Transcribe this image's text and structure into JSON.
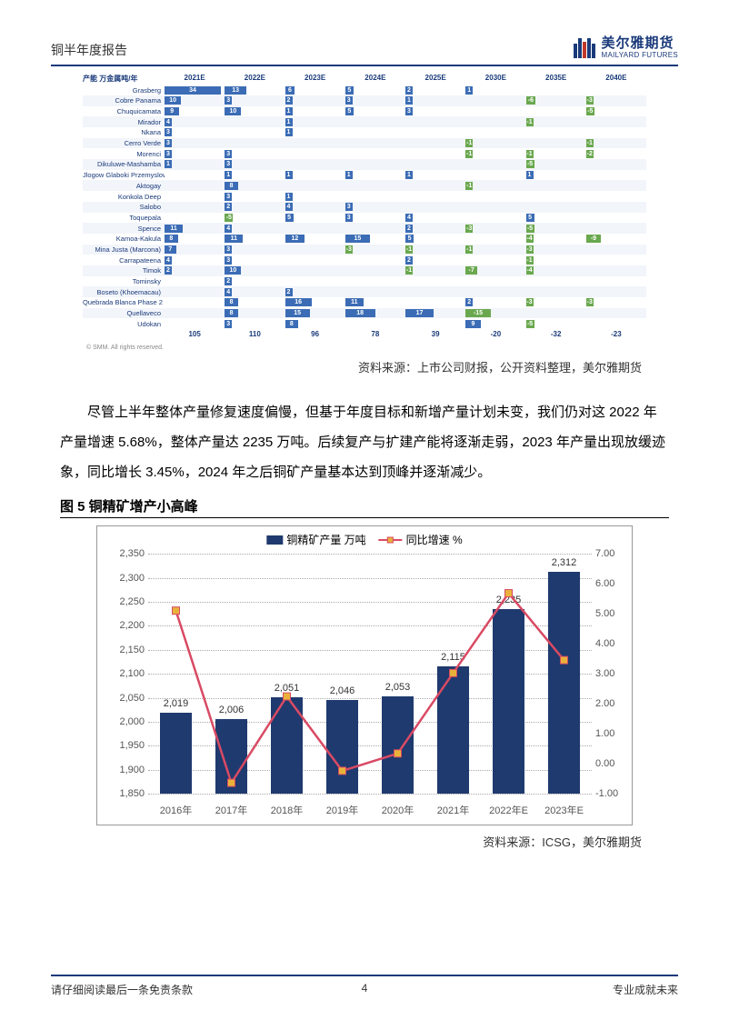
{
  "header": {
    "report_title": "铜半年度报告",
    "logo_cn": "美尔雅期货",
    "logo_en": "MAILYARD FUTURES"
  },
  "mine_chart": {
    "axis_label": "产能 万金属吨/年",
    "years": [
      "2021E",
      "2022E",
      "2023E",
      "2024E",
      "2025E",
      "2030E",
      "2035E",
      "2040E"
    ],
    "pos_color": "#3b6cb5",
    "neg_color": "#6aa84f",
    "row_alt_bg": "#f2f5fa",
    "mines": [
      {
        "name": "Grasberg",
        "cells": [
          {
            "v": 34,
            "p": 1
          },
          {
            "v": 13,
            "p": 1
          },
          {
            "v": 6,
            "p": 1
          },
          {
            "v": 5,
            "p": 1
          },
          {
            "v": 2,
            "p": 1
          },
          {
            "v": 1,
            "p": 1
          },
          null,
          null
        ]
      },
      {
        "name": "Cobre Panama",
        "cells": [
          {
            "v": 10,
            "p": 1
          },
          {
            "v": 3,
            "p": 1
          },
          {
            "v": 2,
            "p": 1
          },
          {
            "v": 3,
            "p": 1
          },
          {
            "v": 1,
            "p": 1
          },
          null,
          {
            "v": -6,
            "p": -1
          },
          {
            "v": -3,
            "p": -1
          }
        ]
      },
      {
        "name": "Chuquicamata",
        "cells": [
          {
            "v": 9,
            "p": 1
          },
          {
            "v": 10,
            "p": 1
          },
          {
            "v": 1,
            "p": 1
          },
          {
            "v": 5,
            "p": 1
          },
          {
            "v": 3,
            "p": 1
          },
          null,
          null,
          {
            "v": -5,
            "p": -1
          }
        ]
      },
      {
        "name": "Mirador",
        "cells": [
          {
            "v": 4,
            "p": 1
          },
          null,
          {
            "v": 1,
            "p": 1
          },
          null,
          null,
          null,
          {
            "v": -1,
            "p": -1
          },
          null
        ]
      },
      {
        "name": "Nkana",
        "cells": [
          {
            "v": 3,
            "p": 1
          },
          null,
          {
            "v": 1,
            "p": 1
          },
          null,
          null,
          null,
          null,
          null
        ]
      },
      {
        "name": "Cerro Verde",
        "cells": [
          {
            "v": 3,
            "p": 1
          },
          null,
          null,
          null,
          null,
          {
            "v": -1,
            "p": -1
          },
          null,
          {
            "v": -1,
            "p": -1
          }
        ]
      },
      {
        "name": "Morenci",
        "cells": [
          {
            "v": 3,
            "p": 1
          },
          {
            "v": 3,
            "p": 1
          },
          null,
          null,
          null,
          {
            "v": -1,
            "p": -1
          },
          {
            "v": -1,
            "p": -1
          },
          {
            "v": -2,
            "p": -1
          }
        ]
      },
      {
        "name": "Dikuluwe-Mashamba",
        "cells": [
          {
            "v": 1,
            "p": 1
          },
          {
            "v": 3,
            "p": 1
          },
          null,
          null,
          null,
          null,
          {
            "v": -5,
            "p": -1
          },
          null
        ]
      },
      {
        "name": "Jlogow Glaboki Przemyslowy",
        "cells": [
          null,
          {
            "v": 1,
            "p": 1
          },
          {
            "v": 1,
            "p": 1
          },
          {
            "v": 1,
            "p": 1
          },
          {
            "v": 1,
            "p": 1
          },
          null,
          {
            "v": 1,
            "p": 1
          },
          null
        ]
      },
      {
        "name": "Aktogay",
        "cells": [
          null,
          {
            "v": 8,
            "p": 1
          },
          null,
          null,
          null,
          {
            "v": -1,
            "p": -1
          },
          null,
          null
        ]
      },
      {
        "name": "Konkola Deep",
        "cells": [
          null,
          {
            "v": 3,
            "p": 1
          },
          {
            "v": 1,
            "p": 1
          },
          null,
          null,
          null,
          null,
          null
        ]
      },
      {
        "name": "Salobo",
        "cells": [
          null,
          {
            "v": 2,
            "p": 1
          },
          {
            "v": 4,
            "p": 1
          },
          {
            "v": 3,
            "p": 1
          },
          null,
          null,
          null,
          null
        ]
      },
      {
        "name": "Toquepala",
        "cells": [
          null,
          {
            "v": -5,
            "p": -1
          },
          {
            "v": 5,
            "p": 1
          },
          {
            "v": 3,
            "p": 1
          },
          {
            "v": 4,
            "p": 1
          },
          null,
          {
            "v": 5,
            "p": 1
          },
          null
        ]
      },
      {
        "name": "Spence",
        "cells": [
          {
            "v": 11,
            "p": 1
          },
          {
            "v": 4,
            "p": 1
          },
          null,
          null,
          {
            "v": 2,
            "p": 1
          },
          {
            "v": -3,
            "p": -1
          },
          {
            "v": -5,
            "p": -1
          },
          null
        ]
      },
      {
        "name": "Kamoa-Kakula",
        "cells": [
          {
            "v": 8,
            "p": 1
          },
          {
            "v": 11,
            "p": 1
          },
          {
            "v": 12,
            "p": 1
          },
          {
            "v": 15,
            "p": 1
          },
          {
            "v": 5,
            "p": 1
          },
          null,
          {
            "v": -4,
            "p": -1
          },
          {
            "v": -9,
            "p": -1
          }
        ]
      },
      {
        "name": "Mina Justa (Marcona)",
        "cells": [
          {
            "v": 7,
            "p": 1
          },
          {
            "v": 3,
            "p": 1
          },
          null,
          {
            "v": -3,
            "p": -1
          },
          {
            "v": -1,
            "p": -1
          },
          {
            "v": -1,
            "p": -1
          },
          {
            "v": -3,
            "p": -1
          },
          null
        ]
      },
      {
        "name": "Carrapateena",
        "cells": [
          {
            "v": 4,
            "p": 1
          },
          {
            "v": 3,
            "p": 1
          },
          null,
          null,
          {
            "v": 2,
            "p": 1
          },
          null,
          {
            "v": -1,
            "p": -1
          },
          null
        ]
      },
      {
        "name": "Timok",
        "cells": [
          {
            "v": 2,
            "p": 1
          },
          {
            "v": 10,
            "p": 1
          },
          null,
          null,
          {
            "v": -1,
            "p": -1
          },
          {
            "v": -7,
            "p": -1
          },
          {
            "v": -4,
            "p": -1
          },
          null
        ]
      },
      {
        "name": "Tominsky",
        "cells": [
          null,
          {
            "v": 2,
            "p": 1
          },
          null,
          null,
          null,
          null,
          null,
          null
        ]
      },
      {
        "name": "Boseto (Khoemacau)",
        "cells": [
          null,
          {
            "v": 4,
            "p": 1
          },
          {
            "v": 2,
            "p": 1
          },
          null,
          null,
          null,
          null,
          null
        ]
      },
      {
        "name": "Quebrada Blanca Phase 2",
        "cells": [
          null,
          {
            "v": 8,
            "p": 1
          },
          {
            "v": 16,
            "p": 1
          },
          {
            "v": 11,
            "p": 1
          },
          null,
          {
            "v": 2,
            "p": 1
          },
          {
            "v": -3,
            "p": -1
          },
          {
            "v": -3,
            "p": -1
          }
        ]
      },
      {
        "name": "Quellaveco",
        "cells": [
          null,
          {
            "v": 8,
            "p": 1
          },
          {
            "v": 15,
            "p": 1
          },
          {
            "v": 18,
            "p": 1
          },
          {
            "v": 17,
            "p": 1
          },
          {
            "v": -15,
            "p": -1
          },
          null,
          null
        ]
      },
      {
        "name": "Udokan",
        "cells": [
          null,
          {
            "v": 3,
            "p": 1
          },
          {
            "v": 8,
            "p": 1
          },
          null,
          null,
          {
            "v": 9,
            "p": 1
          },
          {
            "v": -5,
            "p": -1
          },
          null
        ]
      }
    ],
    "totals": [
      "105",
      "110",
      "96",
      "78",
      "39",
      "-20",
      "-32",
      "-23"
    ],
    "copyright": "© SMM. All rights reserved."
  },
  "source1": "资料来源：上市公司财报，公开资料整理，美尔雅期货",
  "paragraph": "尽管上半年整体产量修复速度偏慢，但基于年度目标和新增产量计划未变，我们仍对这 2022 年产量增速 5.68%，整体产量达 2235 万吨。后续复产与扩建产能将逐渐走弱，2023 年产量出现放缓迹象，同比增长 3.45%，2024 年之后铜矿产量基本达到顶峰并逐渐减少。",
  "fig5_title": "图 5 铜精矿增产小高峰",
  "bar_chart": {
    "legend_bar": "铜精矿产量 万吨",
    "legend_line": "同比增速 %",
    "bar_color": "#1f3a6e",
    "line_color": "#d94a64",
    "marker_color": "#e8b23a",
    "grid_color": "#aaaaaa",
    "y_left": {
      "min": 1850,
      "max": 2350,
      "ticks": [
        "1,850",
        "1,900",
        "1,950",
        "2,000",
        "2,050",
        "2,100",
        "2,150",
        "2,200",
        "2,250",
        "2,300",
        "2,350"
      ]
    },
    "y_right": {
      "min": -1,
      "max": 7,
      "ticks": [
        "-1.00",
        "0.00",
        "1.00",
        "2.00",
        "3.00",
        "4.00",
        "5.00",
        "6.00",
        "7.00"
      ]
    },
    "categories": [
      "2016年",
      "2017年",
      "2018年",
      "2019年",
      "2020年",
      "2021年",
      "2022年E",
      "2023年E"
    ],
    "values": [
      2019,
      2006,
      2051,
      2046,
      2053,
      2115,
      2235,
      2312
    ],
    "labels": [
      "2,019",
      "2,006",
      "2,051",
      "2,046",
      "2,053",
      "2,115",
      "2,235",
      "2,312"
    ],
    "growth": [
      5.1,
      -0.64,
      2.24,
      -0.24,
      0.34,
      3.02,
      5.68,
      3.45
    ]
  },
  "source2": "资料来源：ICSG，美尔雅期货",
  "footer": {
    "left": "请仔细阅读最后一条免责条款",
    "page": "4",
    "right": "专业成就未来"
  }
}
